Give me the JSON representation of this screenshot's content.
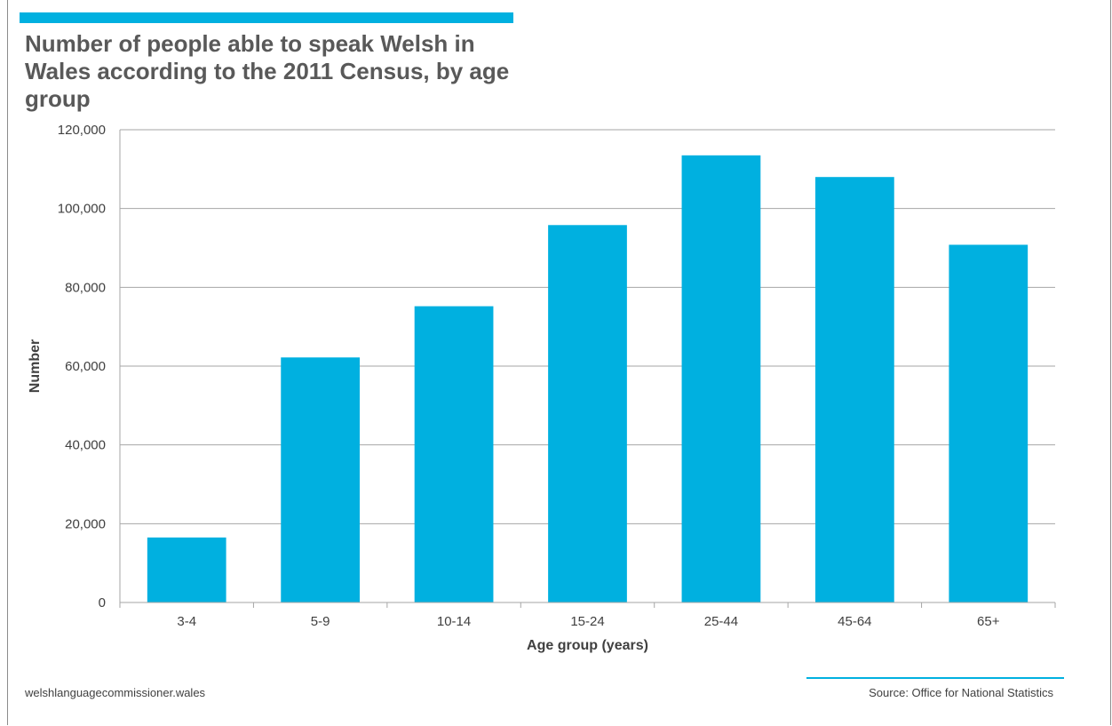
{
  "header": {
    "title": "Number of people able to speak Welsh in Wales according to the 2011 Census, by age group"
  },
  "footer": {
    "url": "welshlanguagecommissioner.wales",
    "source": "Source: Office for National Statistics"
  },
  "colors": {
    "accent": "#00b0e0",
    "bar": "#00b0e0",
    "gridline": "#a6a6a6",
    "text": "#404040"
  },
  "chart_data": {
    "type": "bar",
    "title": "Number of people able to speak Welsh in Wales according to the 2011 Census, by age group",
    "xlabel": "Age group (years)",
    "ylabel": "Number",
    "categories": [
      "3-4",
      "5-9",
      "10-14",
      "15-24",
      "25-44",
      "45-64",
      "65+"
    ],
    "values": [
      16500,
      62200,
      75200,
      95800,
      113500,
      108000,
      90800
    ],
    "ylim": [
      0,
      120000
    ],
    "yticks": [
      0,
      20000,
      40000,
      60000,
      80000,
      100000,
      120000
    ],
    "ytick_labels": [
      "0",
      "20,000",
      "40,000",
      "60,000",
      "80,000",
      "100,000",
      "120,000"
    ],
    "grid": true,
    "legend": "none"
  }
}
